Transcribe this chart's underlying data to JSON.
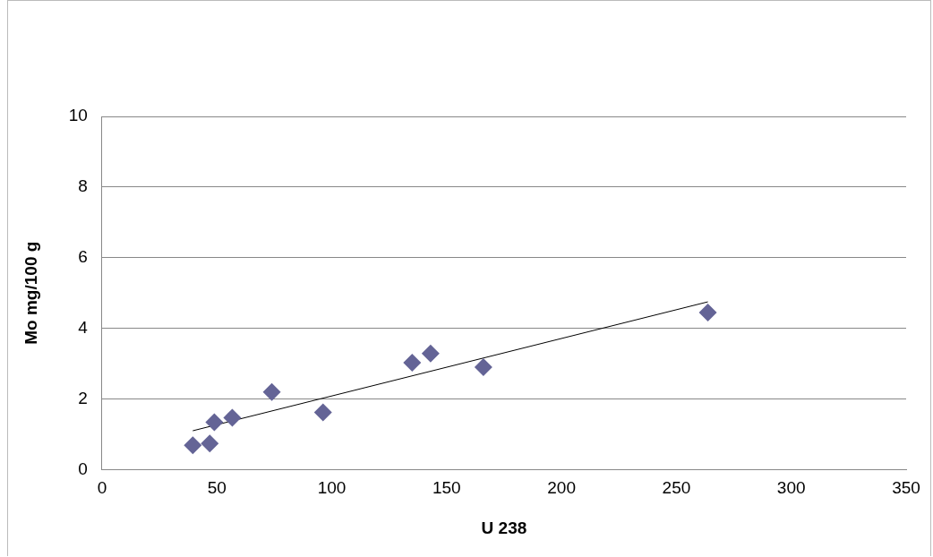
{
  "chart_data": {
    "type": "scatter",
    "xlabel": "U 238",
    "ylabel": "Mo mg/100 g",
    "xlim": [
      0,
      350
    ],
    "xticks": [
      0,
      50,
      100,
      150,
      200,
      250,
      300,
      350
    ],
    "ylim": [
      0,
      10
    ],
    "yticks": [
      0,
      2,
      4,
      6,
      8,
      10
    ],
    "grid": "y",
    "legend": false,
    "marker": "diamond",
    "series": [
      {
        "color": "#646496",
        "x": [
          39.5,
          46.9,
          48.9,
          56.7,
          73.9,
          96.2,
          135,
          143,
          166,
          263.7
        ],
        "values": [
          0.69,
          0.74,
          1.34,
          1.47,
          2.2,
          1.62,
          3.03,
          3.29,
          2.9,
          4.45
        ]
      },
      {
        "type": "line",
        "marker": "none",
        "color": "#000000",
        "x": [
          39.5,
          263.7
        ],
        "values": [
          1.1,
          4.75
        ]
      }
    ]
  }
}
